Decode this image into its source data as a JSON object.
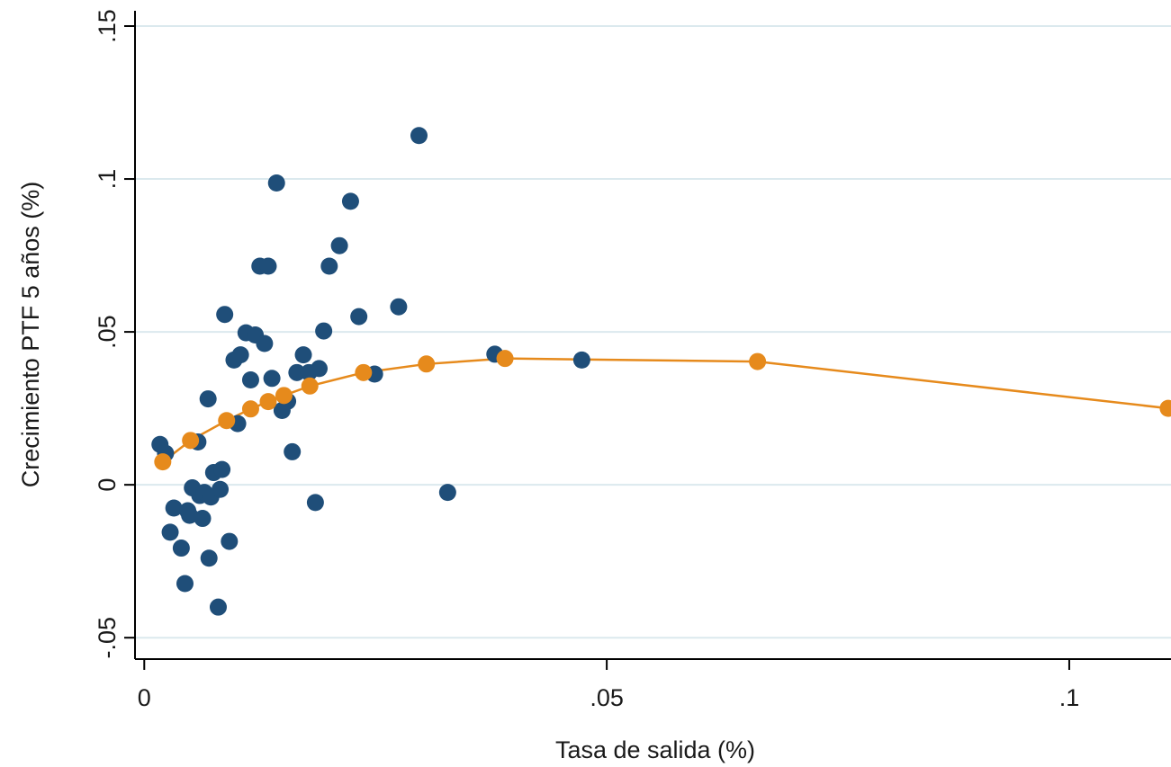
{
  "chart_data": {
    "type": "scatter",
    "title": "",
    "xlabel": "Tasa de salida (%)",
    "ylabel": "Crecimiento PTF 5 años (%)",
    "xlim": [
      -0.001,
      0.111
    ],
    "ylim": [
      -0.057,
      0.155
    ],
    "x_ticks": [
      {
        "value": 0,
        "label": "0"
      },
      {
        "value": 0.05,
        "label": ".05"
      },
      {
        "value": 0.1,
        "label": ".1"
      }
    ],
    "y_ticks": [
      {
        "value": -0.05,
        "label": "-.05"
      },
      {
        "value": 0,
        "label": "0"
      },
      {
        "value": 0.05,
        "label": ".05"
      },
      {
        "value": 0.1,
        "label": ".1"
      },
      {
        "value": 0.15,
        "label": ".15"
      }
    ],
    "grid": {
      "horizontal": true,
      "vertical": false
    },
    "colors": {
      "scatter": "#1f4e79",
      "fit": "#e68a1c",
      "grid": "#dbe9ee"
    },
    "series": [
      {
        "kind": "scatter",
        "points": [
          [
            0.0017,
            0.0132
          ],
          [
            0.0023,
            0.0103
          ],
          [
            0.0028,
            -0.0155
          ],
          [
            0.0032,
            -0.0076
          ],
          [
            0.004,
            -0.0207
          ],
          [
            0.0044,
            -0.0323
          ],
          [
            0.0047,
            -0.0085
          ],
          [
            0.0049,
            -0.01
          ],
          [
            0.0052,
            -0.001
          ],
          [
            0.0058,
            0.014
          ],
          [
            0.006,
            -0.0035
          ],
          [
            0.0063,
            -0.011
          ],
          [
            0.0065,
            -0.0025
          ],
          [
            0.0069,
            0.0281
          ],
          [
            0.007,
            -0.024
          ],
          [
            0.0072,
            -0.004
          ],
          [
            0.0075,
            0.004
          ],
          [
            0.008,
            -0.04
          ],
          [
            0.0082,
            -0.0015
          ],
          [
            0.0084,
            0.005
          ],
          [
            0.0087,
            0.0557
          ],
          [
            0.0092,
            -0.0185
          ],
          [
            0.0097,
            0.0408
          ],
          [
            0.0101,
            0.02
          ],
          [
            0.0104,
            0.0425
          ],
          [
            0.011,
            0.0497
          ],
          [
            0.0115,
            0.0343
          ],
          [
            0.012,
            0.049
          ],
          [
            0.0125,
            0.0715
          ],
          [
            0.013,
            0.0462
          ],
          [
            0.0134,
            0.0715
          ],
          [
            0.0138,
            0.0348
          ],
          [
            0.0143,
            0.0987
          ],
          [
            0.0149,
            0.0243
          ],
          [
            0.0155,
            0.0273
          ],
          [
            0.016,
            0.0108
          ],
          [
            0.0165,
            0.0367
          ],
          [
            0.0172,
            0.0425
          ],
          [
            0.0178,
            0.0367
          ],
          [
            0.0185,
            -0.0058
          ],
          [
            0.0189,
            0.038
          ],
          [
            0.0194,
            0.0503
          ],
          [
            0.02,
            0.0715
          ],
          [
            0.0211,
            0.0782
          ],
          [
            0.0223,
            0.0927
          ],
          [
            0.0232,
            0.055
          ],
          [
            0.0249,
            0.0362
          ],
          [
            0.0275,
            0.0582
          ],
          [
            0.0297,
            0.1142
          ],
          [
            0.0328,
            -0.0025
          ],
          [
            0.0379,
            0.0427
          ],
          [
            0.0473,
            0.0408
          ]
        ]
      },
      {
        "kind": "line-with-markers",
        "points": [
          [
            0.002,
            0.0075
          ],
          [
            0.005,
            0.0145
          ],
          [
            0.0089,
            0.021
          ],
          [
            0.0115,
            0.0248
          ],
          [
            0.0134,
            0.0272
          ],
          [
            0.0151,
            0.0292
          ],
          [
            0.0179,
            0.0323
          ],
          [
            0.0237,
            0.0367
          ],
          [
            0.0305,
            0.0395
          ],
          [
            0.039,
            0.0413
          ],
          [
            0.0663,
            0.0403
          ],
          [
            0.1107,
            0.025
          ]
        ]
      }
    ]
  }
}
